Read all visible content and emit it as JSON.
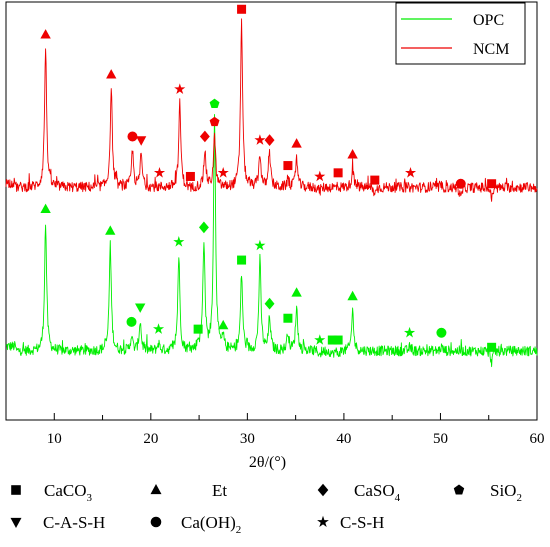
{
  "chart_data": {
    "type": "line",
    "xlabel": "2θ/(°)",
    "ylabel": "",
    "xlim": [
      5,
      60
    ],
    "x_ticks": [
      "10",
      "20",
      "30",
      "40",
      "50",
      "60"
    ],
    "legend": {
      "placement": "top-right",
      "entries": [
        "OPC",
        "NCM"
      ]
    },
    "grid": false,
    "series": [
      {
        "name": "OPC",
        "color": "#00ee00",
        "baseline": 0.14,
        "peaks": [
          {
            "x": 9.1,
            "y": 0.53,
            "phase": "Et"
          },
          {
            "x": 15.8,
            "y": 0.47,
            "phase": "Et"
          },
          {
            "x": 18.0,
            "y": 0.22,
            "phase": "Ca(OH)2"
          },
          {
            "x": 18.9,
            "y": 0.26,
            "phase": "C-A-S-H"
          },
          {
            "x": 20.8,
            "y": 0.2,
            "phase": "C-S-H"
          },
          {
            "x": 22.9,
            "y": 0.44,
            "phase": "C-S-H"
          },
          {
            "x": 24.9,
            "y": 0.2,
            "phase": "CaCO3"
          },
          {
            "x": 25.5,
            "y": 0.48,
            "phase": "CaSO4"
          },
          {
            "x": 26.6,
            "y": 0.82,
            "phase": "SiO2"
          },
          {
            "x": 27.5,
            "y": 0.21,
            "phase": "Et"
          },
          {
            "x": 29.4,
            "y": 0.39,
            "phase": "CaCO3"
          },
          {
            "x": 31.3,
            "y": 0.43,
            "phase": "C-S-H"
          },
          {
            "x": 32.3,
            "y": 0.27,
            "phase": "CaSO4"
          },
          {
            "x": 34.2,
            "y": 0.23,
            "phase": "CaCO3"
          },
          {
            "x": 35.1,
            "y": 0.3,
            "phase": "Et"
          },
          {
            "x": 37.5,
            "y": 0.17,
            "phase": "C-S-H"
          },
          {
            "x": 38.8,
            "y": 0.17,
            "phase": "CaCO3"
          },
          {
            "x": 39.4,
            "y": 0.17,
            "phase": "CaCO3"
          },
          {
            "x": 40.9,
            "y": 0.29,
            "phase": "Et"
          },
          {
            "x": 46.8,
            "y": 0.19,
            "phase": "C-S-H"
          },
          {
            "x": 50.1,
            "y": 0.19,
            "phase": "Ca(OH)2"
          },
          {
            "x": 55.3,
            "y": 0.15,
            "phase": "CaCO3"
          }
        ]
      },
      {
        "name": "NCM",
        "color": "#ee0000",
        "baseline": 0.59,
        "peaks": [
          {
            "x": 9.1,
            "y": 1.01,
            "phase": "Et"
          },
          {
            "x": 15.9,
            "y": 0.9,
            "phase": "Et"
          },
          {
            "x": 18.1,
            "y": 0.73,
            "phase": "Ca(OH)2"
          },
          {
            "x": 19.0,
            "y": 0.72,
            "phase": "C-A-S-H"
          },
          {
            "x": 20.9,
            "y": 0.63,
            "phase": "C-S-H"
          },
          {
            "x": 23.0,
            "y": 0.86,
            "phase": "C-S-H"
          },
          {
            "x": 24.1,
            "y": 0.62,
            "phase": "CaCO3"
          },
          {
            "x": 25.6,
            "y": 0.73,
            "phase": "CaSO4"
          },
          {
            "x": 26.6,
            "y": 0.77,
            "phase": "SiO2"
          },
          {
            "x": 27.5,
            "y": 0.63,
            "phase": "C-S-H"
          },
          {
            "x": 29.4,
            "y": 1.08,
            "phase": "CaCO3"
          },
          {
            "x": 31.3,
            "y": 0.72,
            "phase": "C-S-H"
          },
          {
            "x": 32.3,
            "y": 0.72,
            "phase": "CaSO4"
          },
          {
            "x": 34.2,
            "y": 0.65,
            "phase": "CaCO3"
          },
          {
            "x": 35.1,
            "y": 0.71,
            "phase": "Et"
          },
          {
            "x": 37.5,
            "y": 0.62,
            "phase": "C-S-H"
          },
          {
            "x": 39.4,
            "y": 0.63,
            "phase": "CaCO3"
          },
          {
            "x": 40.9,
            "y": 0.68,
            "phase": "Et"
          },
          {
            "x": 43.2,
            "y": 0.61,
            "phase": "CaCO3"
          },
          {
            "x": 46.9,
            "y": 0.63,
            "phase": "C-S-H"
          },
          {
            "x": 52.1,
            "y": 0.6,
            "phase": "Ca(OH)2"
          },
          {
            "x": 55.3,
            "y": 0.6,
            "phase": "CaCO3"
          }
        ]
      }
    ],
    "phase_key": [
      {
        "phase": "CaCO3",
        "marker": "square",
        "label": "CaCO",
        "sub": "3"
      },
      {
        "phase": "Et",
        "marker": "triangle-up",
        "label": "Et",
        "sub": ""
      },
      {
        "phase": "CaSO4",
        "marker": "diamond",
        "label": "CaSO",
        "sub": "4"
      },
      {
        "phase": "SiO2",
        "marker": "pentagon",
        "label": "SiO",
        "sub": "2"
      },
      {
        "phase": "C-A-S-H",
        "marker": "triangle-down",
        "label": "C-A-S-H",
        "sub": ""
      },
      {
        "phase": "Ca(OH)2",
        "marker": "circle",
        "label": "Ca(OH)",
        "sub": "2"
      },
      {
        "phase": "C-S-H",
        "marker": "star",
        "label": "C-S-H",
        "sub": ""
      }
    ]
  }
}
